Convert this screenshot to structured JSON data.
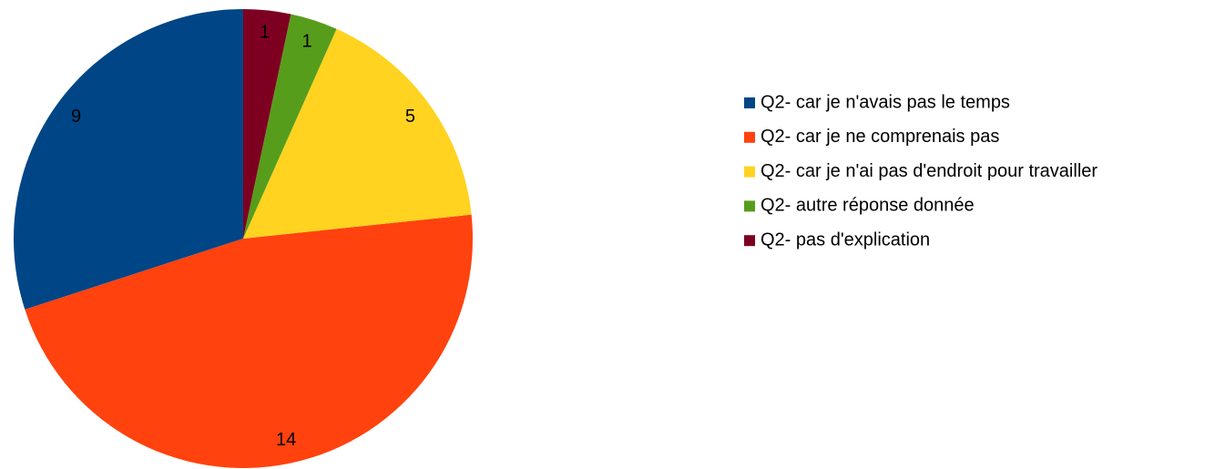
{
  "chart_data": {
    "type": "pie",
    "categories": [
      "Q2- car je n'avais pas le temps",
      "Q2- car je ne comprenais pas",
      "Q2- car je n'ai pas d'endroit pour travailler",
      "Q2- autre réponse donnée",
      "Q2- pas d'explication"
    ],
    "values": [
      9,
      14,
      5,
      1,
      1
    ],
    "colors": [
      "#004586",
      "#ff420e",
      "#ffd320",
      "#579d1c",
      "#7e0021"
    ],
    "legend": "right"
  }
}
